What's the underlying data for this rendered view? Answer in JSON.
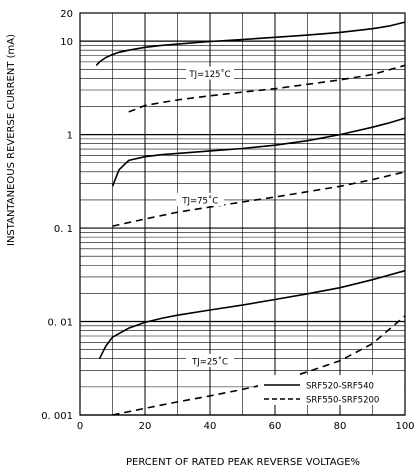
{
  "chart_data": {
    "type": "line",
    "xlabel": "PERCENT OF RATED PEAK REVERSE VOLTAGE%",
    "ylabel": "INSTANTANEOUS REVERSE CURRENT (mA)",
    "xlim": [
      0,
      100
    ],
    "ylim": [
      0.001,
      20
    ],
    "y_scale": "log",
    "grid": true,
    "x_ticks": [
      "0",
      "20",
      "40",
      "60",
      "80",
      "100"
    ],
    "x_tick_values": [
      0,
      20,
      40,
      60,
      80,
      100
    ],
    "y_ticks": [
      "20",
      "10",
      "1",
      "0. 1",
      "0. 01",
      "0. 001"
    ],
    "y_tick_values": [
      20,
      10,
      1,
      0.1,
      0.01,
      0.001
    ],
    "legend_position": "bottom-right",
    "legend": [
      {
        "label": "SRF520-SRF540",
        "style": "solid"
      },
      {
        "label": "SRF550-SRF5200",
        "style": "dashed"
      }
    ],
    "annotations": [
      {
        "text": "TJ=125˚C",
        "x": 40,
        "y": 4.5
      },
      {
        "text": "TJ=75˚C",
        "x": 37,
        "y": 0.2
      },
      {
        "text": "TJ=25˚C",
        "x": 40,
        "y": 0.0038
      }
    ],
    "series": [
      {
        "name": "SRF520-SRF540",
        "tj": "125",
        "style": "solid",
        "x": [
          5,
          6,
          8,
          10,
          12,
          15,
          20,
          25,
          30,
          40,
          50,
          60,
          70,
          80,
          90,
          95,
          100
        ],
        "y": [
          5.5,
          6.0,
          6.7,
          7.2,
          7.6,
          8.0,
          8.6,
          9.0,
          9.3,
          9.9,
          10.4,
          11.0,
          11.6,
          12.4,
          13.6,
          14.5,
          16.0
        ]
      },
      {
        "name": "SRF550-SRF5200",
        "tj": "125",
        "style": "dashed",
        "x": [
          15,
          20,
          25,
          30,
          40,
          50,
          60,
          70,
          80,
          90,
          100
        ],
        "y": [
          1.75,
          2.05,
          2.2,
          2.35,
          2.6,
          2.85,
          3.1,
          3.45,
          3.85,
          4.4,
          5.5
        ]
      },
      {
        "name": "SRF520-SRF540",
        "tj": "75",
        "style": "solid",
        "x": [
          10,
          12,
          15,
          20,
          25,
          30,
          40,
          50,
          60,
          70,
          80,
          90,
          95,
          100
        ],
        "y": [
          0.28,
          0.42,
          0.53,
          0.58,
          0.61,
          0.63,
          0.67,
          0.71,
          0.77,
          0.86,
          1.0,
          1.2,
          1.33,
          1.5
        ]
      },
      {
        "name": "SRF550-SRF5200",
        "tj": "75",
        "style": "dashed",
        "x": [
          10,
          20,
          30,
          40,
          50,
          60,
          70,
          80,
          90,
          100
        ],
        "y": [
          0.105,
          0.125,
          0.148,
          0.168,
          0.19,
          0.215,
          0.245,
          0.28,
          0.33,
          0.4
        ]
      },
      {
        "name": "SRF520-SRF540",
        "tj": "25",
        "style": "solid",
        "x": [
          6,
          8,
          10,
          15,
          20,
          25,
          30,
          40,
          50,
          60,
          70,
          80,
          90,
          100
        ],
        "y": [
          0.004,
          0.0055,
          0.0068,
          0.0085,
          0.0098,
          0.0108,
          0.0117,
          0.0133,
          0.015,
          0.0172,
          0.0198,
          0.023,
          0.028,
          0.035
        ]
      },
      {
        "name": "SRF550-SRF5200",
        "tj": "25",
        "style": "dashed",
        "x": [
          10,
          20,
          30,
          40,
          50,
          60,
          70,
          80,
          90,
          100
        ],
        "y": [
          0.001,
          0.00118,
          0.00138,
          0.0016,
          0.00188,
          0.00225,
          0.0029,
          0.0038,
          0.0058,
          0.0115
        ]
      }
    ]
  }
}
